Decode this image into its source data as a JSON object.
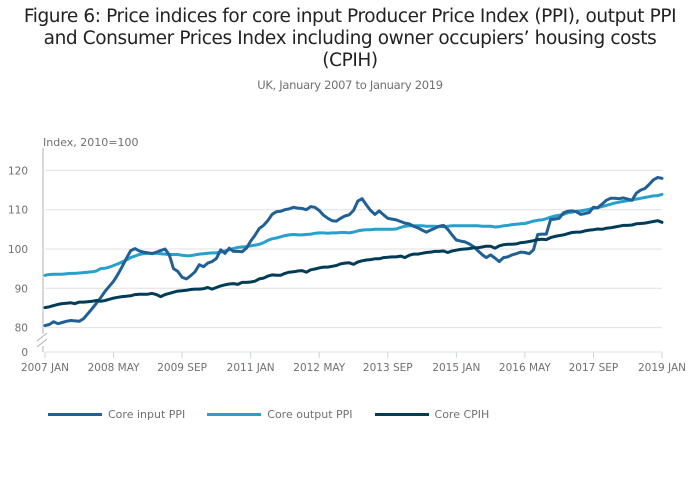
{
  "chart_data": {
    "type": "line",
    "title_lines": [
      "Figure 6: Price indices for core input Producer Price Index (PPI), output PPI",
      "and Consumer Prices Index including owner occupiers’ housing costs",
      "(CPIH)"
    ],
    "subtitle": "UK, January 2007 to January 2019",
    "ylabel": "Index, 2010=100",
    "xlabel": "",
    "x_start": "2007-01",
    "x_frequency": "monthly",
    "x_tick_labels": [
      "2007 JAN",
      "2008 MAY",
      "2009 SEP",
      "2011 JAN",
      "2012 MAY",
      "2013 SEP",
      "2015 JAN",
      "2016 MAY",
      "2017 SEP",
      "2019 JAN"
    ],
    "x_tick_month_index": [
      0,
      16,
      32,
      48,
      64,
      80,
      96,
      112,
      128,
      144
    ],
    "y_tick_labels": [
      "0",
      "80",
      "90",
      "100",
      "110",
      "120"
    ],
    "y_ticks": [
      0,
      80,
      90,
      100,
      110,
      120
    ],
    "ylim": [
      80,
      125
    ],
    "y_axis_break": true,
    "grid": true,
    "legend_position": "bottom",
    "series": [
      {
        "name": "Core input PPI",
        "color": "#206095",
        "values": [
          80.5,
          80.8,
          81.5,
          81.0,
          81.3,
          81.6,
          81.8,
          81.7,
          81.6,
          82.3,
          83.5,
          84.8,
          86.2,
          87.6,
          89.2,
          90.5,
          91.8,
          93.5,
          95.5,
          97.6,
          99.6,
          100.1,
          99.5,
          99.2,
          99.0,
          98.8,
          99.2,
          99.6,
          100.0,
          98.5,
          95.0,
          94.3,
          92.8,
          92.4,
          93.2,
          94.2,
          96.0,
          95.5,
          96.4,
          96.8,
          97.6,
          99.8,
          98.9,
          100.2,
          99.4,
          99.4,
          99.3,
          100.2,
          102.0,
          103.5,
          105.2,
          106.0,
          107.2,
          108.8,
          109.5,
          109.6,
          110.0,
          110.2,
          110.6,
          110.4,
          110.3,
          110.0,
          110.8,
          110.6,
          109.8,
          108.6,
          107.8,
          107.2,
          107.1,
          107.8,
          108.4,
          108.7,
          109.8,
          112.2,
          112.8,
          111.2,
          109.8,
          108.8,
          109.7,
          108.7,
          107.8,
          107.6,
          107.4,
          107.0,
          106.6,
          106.4,
          105.8,
          105.4,
          104.8,
          104.3,
          104.8,
          105.3,
          105.8,
          106.0,
          105.0,
          103.6,
          102.3,
          102.0,
          101.8,
          101.3,
          100.6,
          99.6,
          98.6,
          97.8,
          98.5,
          97.7,
          96.8,
          97.8,
          98.0,
          98.5,
          98.8,
          99.2,
          99.1,
          98.8,
          99.8,
          103.7,
          103.8,
          103.8,
          107.5,
          107.6,
          107.8,
          109.2,
          109.6,
          109.7,
          109.5,
          108.8,
          109.0,
          109.3,
          110.6,
          110.5,
          111.4,
          112.4,
          112.9,
          112.9,
          112.8,
          113.0,
          112.7,
          112.4,
          114.2,
          115.0,
          115.4,
          116.4,
          117.6,
          118.2,
          118.0
        ]
      },
      {
        "name": "Core output PPI",
        "color": "#27a0cc",
        "values": [
          93.3,
          93.5,
          93.6,
          93.6,
          93.6,
          93.7,
          93.8,
          93.8,
          93.9,
          94.0,
          94.1,
          94.2,
          94.4,
          95.0,
          95.1,
          95.4,
          95.8,
          96.2,
          96.7,
          97.2,
          97.8,
          98.2,
          98.6,
          98.8,
          98.9,
          98.9,
          98.9,
          98.8,
          98.7,
          98.6,
          98.6,
          98.6,
          98.4,
          98.3,
          98.3,
          98.5,
          98.7,
          98.8,
          98.9,
          99.0,
          99.0,
          99.2,
          99.5,
          99.8,
          100.1,
          100.4,
          100.5,
          100.6,
          100.8,
          101.0,
          101.2,
          101.6,
          102.2,
          102.6,
          102.8,
          103.1,
          103.4,
          103.6,
          103.7,
          103.6,
          103.6,
          103.7,
          103.8,
          104.0,
          104.1,
          104.1,
          104.0,
          104.1,
          104.1,
          104.2,
          104.2,
          104.1,
          104.3,
          104.6,
          104.8,
          104.9,
          104.9,
          105.0,
          105.0,
          105.0,
          105.0,
          105.0,
          105.1,
          105.5,
          105.8,
          105.9,
          105.9,
          105.9,
          105.9,
          105.8,
          105.8,
          105.8,
          105.7,
          105.7,
          105.8,
          105.9,
          105.9,
          105.9,
          105.9,
          105.9,
          105.9,
          105.9,
          105.8,
          105.8,
          105.8,
          105.6,
          105.7,
          105.9,
          106.0,
          106.2,
          106.3,
          106.4,
          106.5,
          106.8,
          107.1,
          107.3,
          107.4,
          107.7,
          108.1,
          108.4,
          108.6,
          108.8,
          109.2,
          109.4,
          109.6,
          109.7,
          109.9,
          110.1,
          110.4,
          110.5,
          110.8,
          111.1,
          111.4,
          111.7,
          111.9,
          112.1,
          112.3,
          112.5,
          112.7,
          112.9,
          113.1,
          113.3,
          113.5,
          113.6,
          113.9
        ]
      },
      {
        "name": "Core CPIH",
        "color": "#003c57",
        "values": [
          85.1,
          85.3,
          85.6,
          85.9,
          86.1,
          86.2,
          86.3,
          86.1,
          86.5,
          86.5,
          86.6,
          86.7,
          86.9,
          86.7,
          86.9,
          87.2,
          87.5,
          87.7,
          87.9,
          88.0,
          88.1,
          88.4,
          88.5,
          88.5,
          88.5,
          88.7,
          88.4,
          87.9,
          88.4,
          88.7,
          89.0,
          89.3,
          89.4,
          89.5,
          89.7,
          89.8,
          89.8,
          89.9,
          90.2,
          89.8,
          90.2,
          90.6,
          90.9,
          91.1,
          91.2,
          91.0,
          91.5,
          91.5,
          91.6,
          91.8,
          92.4,
          92.6,
          93.1,
          93.4,
          93.3,
          93.3,
          93.8,
          94.1,
          94.2,
          94.4,
          94.5,
          94.1,
          94.7,
          94.9,
          95.2,
          95.4,
          95.4,
          95.6,
          95.8,
          96.2,
          96.4,
          96.5,
          96.1,
          96.7,
          97.0,
          97.2,
          97.3,
          97.5,
          97.5,
          97.8,
          97.9,
          98.0,
          98.0,
          98.2,
          97.8,
          98.4,
          98.7,
          98.7,
          98.9,
          99.1,
          99.2,
          99.4,
          99.4,
          99.5,
          99.1,
          99.5,
          99.7,
          99.9,
          100.0,
          100.1,
          100.3,
          100.3,
          100.5,
          100.7,
          100.7,
          100.2,
          100.8,
          101.1,
          101.2,
          101.2,
          101.3,
          101.6,
          101.7,
          101.9,
          102.1,
          102.4,
          102.5,
          102.4,
          102.9,
          103.2,
          103.4,
          103.6,
          103.9,
          104.2,
          104.3,
          104.3,
          104.6,
          104.8,
          104.9,
          105.1,
          105.0,
          105.3,
          105.4,
          105.6,
          105.8,
          106.0,
          106.0,
          106.1,
          106.4,
          106.5,
          106.6,
          106.8,
          107.0,
          107.2,
          106.8
        ]
      }
    ]
  }
}
